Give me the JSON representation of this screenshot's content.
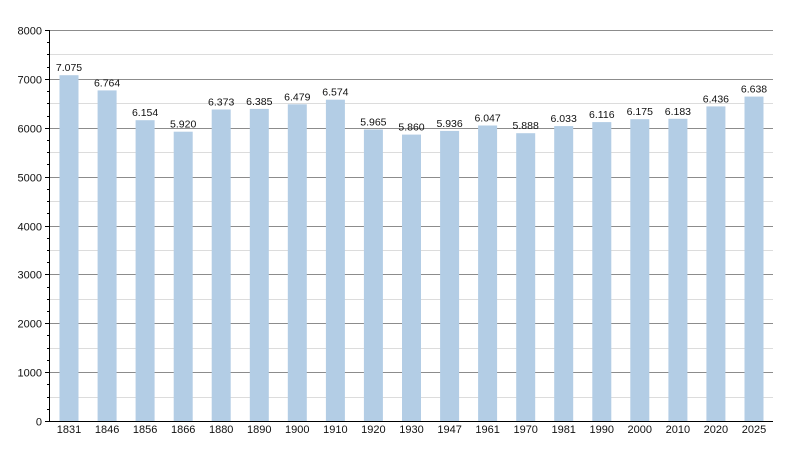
{
  "chart_data": {
    "type": "bar",
    "title": "",
    "xlabel": "",
    "ylabel": "",
    "categories": [
      "1831",
      "1846",
      "1856",
      "1866",
      "1880",
      "1890",
      "1900",
      "1910",
      "1920",
      "1930",
      "1947",
      "1961",
      "1970",
      "1981",
      "1990",
      "2000",
      "2010",
      "2020",
      "2025"
    ],
    "values": [
      7075,
      6764,
      6154,
      5920,
      6373,
      6385,
      6479,
      6574,
      5965,
      5860,
      5936,
      6047,
      5888,
      6033,
      6116,
      6175,
      6183,
      6436,
      6638
    ],
    "data_labels": [
      "7.075",
      "6.764",
      "6.154",
      "5.920",
      "6.373",
      "6.385",
      "6.479",
      "6.574",
      "5.965",
      "5.860",
      "5.936",
      "6.047",
      "5.888",
      "6.033",
      "6.116",
      "6.175",
      "6.183",
      "6.436",
      "6.638"
    ],
    "ylim": [
      0,
      8000
    ],
    "yticks": [
      "0",
      "1000",
      "2000",
      "3000",
      "4000",
      "5000",
      "6000",
      "7000",
      "8000"
    ],
    "grid": true,
    "legend": "none",
    "colors": {
      "bar": "#b3cde5",
      "major_grid": "#8c8c8c",
      "minor_grid": "#dcdcdc",
      "axis": "#000000",
      "text": "#111111"
    }
  }
}
